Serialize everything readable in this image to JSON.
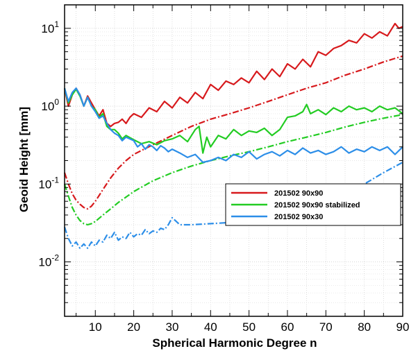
{
  "chart_data": {
    "type": "line",
    "xlabel": "Spherical Harmonic Degree n",
    "ylabel": "Geoid Height [mm]",
    "xlim": [
      2,
      90
    ],
    "ylim": [
      0.002,
      20
    ],
    "yscale": "log",
    "x_ticks": [
      10,
      20,
      30,
      40,
      50,
      60,
      70,
      80,
      90
    ],
    "y_ticks": [
      {
        "value": 10,
        "base": "10",
        "exp": "1"
      },
      {
        "value": 1,
        "base": "10",
        "exp": "0"
      },
      {
        "value": 0.1,
        "base": "10",
        "exp": "-1"
      },
      {
        "value": 0.01,
        "base": "10",
        "exp": "-2"
      }
    ],
    "grid": true,
    "legend_position": "center-right",
    "legend": [
      {
        "label": "201502 90x90",
        "color": "#d7191c"
      },
      {
        "label": "201502 90x90 stabilized",
        "color": "#22cc22"
      },
      {
        "label": "201502 90x30",
        "color": "#2c8ee8"
      }
    ],
    "series": [
      {
        "name": "201502 90x90",
        "style": "solid",
        "color": "#d7191c",
        "x": [
          2,
          3,
          4,
          5,
          6,
          7,
          8,
          9,
          10,
          11,
          12,
          13,
          14,
          15,
          16,
          17,
          18,
          19,
          20,
          22,
          24,
          26,
          28,
          30,
          32,
          34,
          36,
          38,
          40,
          42,
          44,
          46,
          48,
          50,
          52,
          54,
          56,
          58,
          60,
          62,
          64,
          66,
          68,
          70,
          72,
          74,
          76,
          78,
          80,
          82,
          84,
          86,
          88,
          89,
          90
        ],
        "y": [
          1.7,
          1.0,
          1.4,
          1.7,
          1.4,
          1.0,
          1.35,
          1.1,
          0.9,
          0.75,
          0.9,
          0.6,
          0.55,
          0.6,
          0.62,
          0.68,
          0.6,
          0.72,
          0.8,
          0.72,
          0.95,
          0.85,
          1.15,
          0.95,
          1.3,
          1.1,
          1.5,
          1.25,
          1.9,
          1.6,
          2.1,
          1.9,
          2.3,
          2.0,
          2.8,
          2.2,
          3.0,
          2.4,
          3.5,
          3.0,
          4.0,
          3.2,
          5.0,
          4.5,
          5.5,
          6.0,
          7.0,
          6.5,
          8.5,
          7.5,
          9.0,
          8.0,
          11.5,
          10.0,
          10.5
        ]
      },
      {
        "name": "201502 90x90",
        "style": "dashdot",
        "color": "#d7191c",
        "x": [
          2,
          3,
          4,
          5,
          6,
          7,
          8,
          9,
          10,
          12,
          14,
          16,
          18,
          20,
          25,
          30,
          35,
          40,
          45,
          50,
          55,
          60,
          65,
          70,
          75,
          80,
          85,
          90
        ],
        "y": [
          0.14,
          0.1,
          0.075,
          0.062,
          0.055,
          0.05,
          0.048,
          0.052,
          0.06,
          0.085,
          0.12,
          0.16,
          0.2,
          0.24,
          0.32,
          0.42,
          0.55,
          0.68,
          0.8,
          0.95,
          1.15,
          1.4,
          1.7,
          2.0,
          2.5,
          3.0,
          3.7,
          4.4
        ]
      },
      {
        "name": "201502 90x90 stabilized",
        "style": "solid",
        "color": "#22cc22",
        "x": [
          2,
          3,
          4,
          5,
          6,
          7,
          8,
          9,
          10,
          11,
          12,
          13,
          14,
          15,
          16,
          17,
          18,
          20,
          22,
          24,
          26,
          28,
          30,
          32,
          34,
          36,
          37,
          38,
          39,
          40,
          42,
          44,
          46,
          48,
          50,
          52,
          54,
          56,
          58,
          60,
          62,
          64,
          65,
          66,
          68,
          70,
          72,
          74,
          76,
          78,
          80,
          82,
          84,
          86,
          88,
          90
        ],
        "y": [
          1.7,
          1.1,
          1.4,
          1.65,
          1.35,
          1.0,
          1.3,
          1.0,
          0.9,
          0.72,
          0.8,
          0.55,
          0.5,
          0.5,
          0.45,
          0.38,
          0.42,
          0.37,
          0.33,
          0.35,
          0.32,
          0.36,
          0.38,
          0.42,
          0.35,
          0.5,
          0.55,
          0.25,
          0.4,
          0.3,
          0.42,
          0.38,
          0.5,
          0.42,
          0.48,
          0.46,
          0.52,
          0.42,
          0.5,
          0.72,
          0.75,
          0.85,
          1.05,
          0.8,
          0.9,
          0.78,
          0.95,
          0.85,
          1.0,
          0.9,
          0.95,
          0.85,
          1.0,
          0.9,
          0.95,
          0.8
        ]
      },
      {
        "name": "201502 90x90 stabilized",
        "style": "dashdot",
        "color": "#22cc22",
        "x": [
          2,
          3,
          4,
          5,
          6,
          7,
          8,
          9,
          10,
          12,
          14,
          16,
          18,
          20,
          25,
          30,
          35,
          40,
          45,
          50,
          55,
          60,
          65,
          70,
          75,
          80,
          85,
          90
        ],
        "y": [
          0.1,
          0.07,
          0.05,
          0.04,
          0.034,
          0.031,
          0.03,
          0.031,
          0.033,
          0.04,
          0.048,
          0.058,
          0.068,
          0.08,
          0.11,
          0.14,
          0.17,
          0.2,
          0.23,
          0.26,
          0.3,
          0.35,
          0.4,
          0.46,
          0.54,
          0.62,
          0.7,
          0.78
        ]
      },
      {
        "name": "201502 90x30",
        "style": "solid",
        "color": "#2c8ee8",
        "x": [
          2,
          3,
          4,
          5,
          6,
          7,
          8,
          9,
          10,
          11,
          12,
          13,
          14,
          15,
          16,
          17,
          18,
          19,
          20,
          21,
          22,
          23,
          24,
          25,
          26,
          27,
          28,
          29,
          30,
          32,
          34,
          36,
          38,
          40,
          42,
          44,
          46,
          48,
          50,
          52,
          54,
          56,
          58,
          60,
          62,
          64,
          66,
          68,
          70,
          72,
          74,
          76,
          78,
          80,
          82,
          84,
          86,
          88,
          90
        ],
        "y": [
          1.7,
          1.15,
          1.5,
          1.7,
          1.4,
          1.0,
          1.3,
          1.0,
          0.85,
          0.7,
          0.75,
          0.6,
          0.5,
          0.45,
          0.42,
          0.36,
          0.4,
          0.38,
          0.36,
          0.3,
          0.33,
          0.28,
          0.32,
          0.3,
          0.27,
          0.31,
          0.29,
          0.26,
          0.28,
          0.25,
          0.22,
          0.24,
          0.19,
          0.2,
          0.22,
          0.2,
          0.24,
          0.22,
          0.26,
          0.21,
          0.24,
          0.26,
          0.23,
          0.27,
          0.24,
          0.29,
          0.25,
          0.27,
          0.24,
          0.26,
          0.3,
          0.25,
          0.28,
          0.26,
          0.3,
          0.27,
          0.3,
          0.24,
          0.3
        ]
      },
      {
        "name": "201502 90x30",
        "style": "dashdot",
        "color": "#2c8ee8",
        "x": [
          2,
          3,
          4,
          5,
          6,
          7,
          8,
          9,
          10,
          11,
          12,
          13,
          14,
          15,
          16,
          17,
          18,
          19,
          20,
          21,
          22,
          23,
          24,
          25,
          26,
          27,
          28,
          29,
          30,
          32,
          35,
          40,
          45,
          50,
          55,
          60,
          65,
          70,
          75,
          80,
          85,
          90
        ],
        "y": [
          0.028,
          0.02,
          0.016,
          0.018,
          0.015,
          0.017,
          0.015,
          0.018,
          0.016,
          0.019,
          0.018,
          0.022,
          0.02,
          0.024,
          0.019,
          0.021,
          0.02,
          0.024,
          0.021,
          0.023,
          0.022,
          0.026,
          0.023,
          0.025,
          0.024,
          0.027,
          0.026,
          0.03,
          0.037,
          0.03,
          0.03,
          0.031,
          0.032,
          0.034,
          0.037,
          0.041,
          0.048,
          0.058,
          0.075,
          0.1,
          0.14,
          0.19
        ]
      }
    ]
  }
}
